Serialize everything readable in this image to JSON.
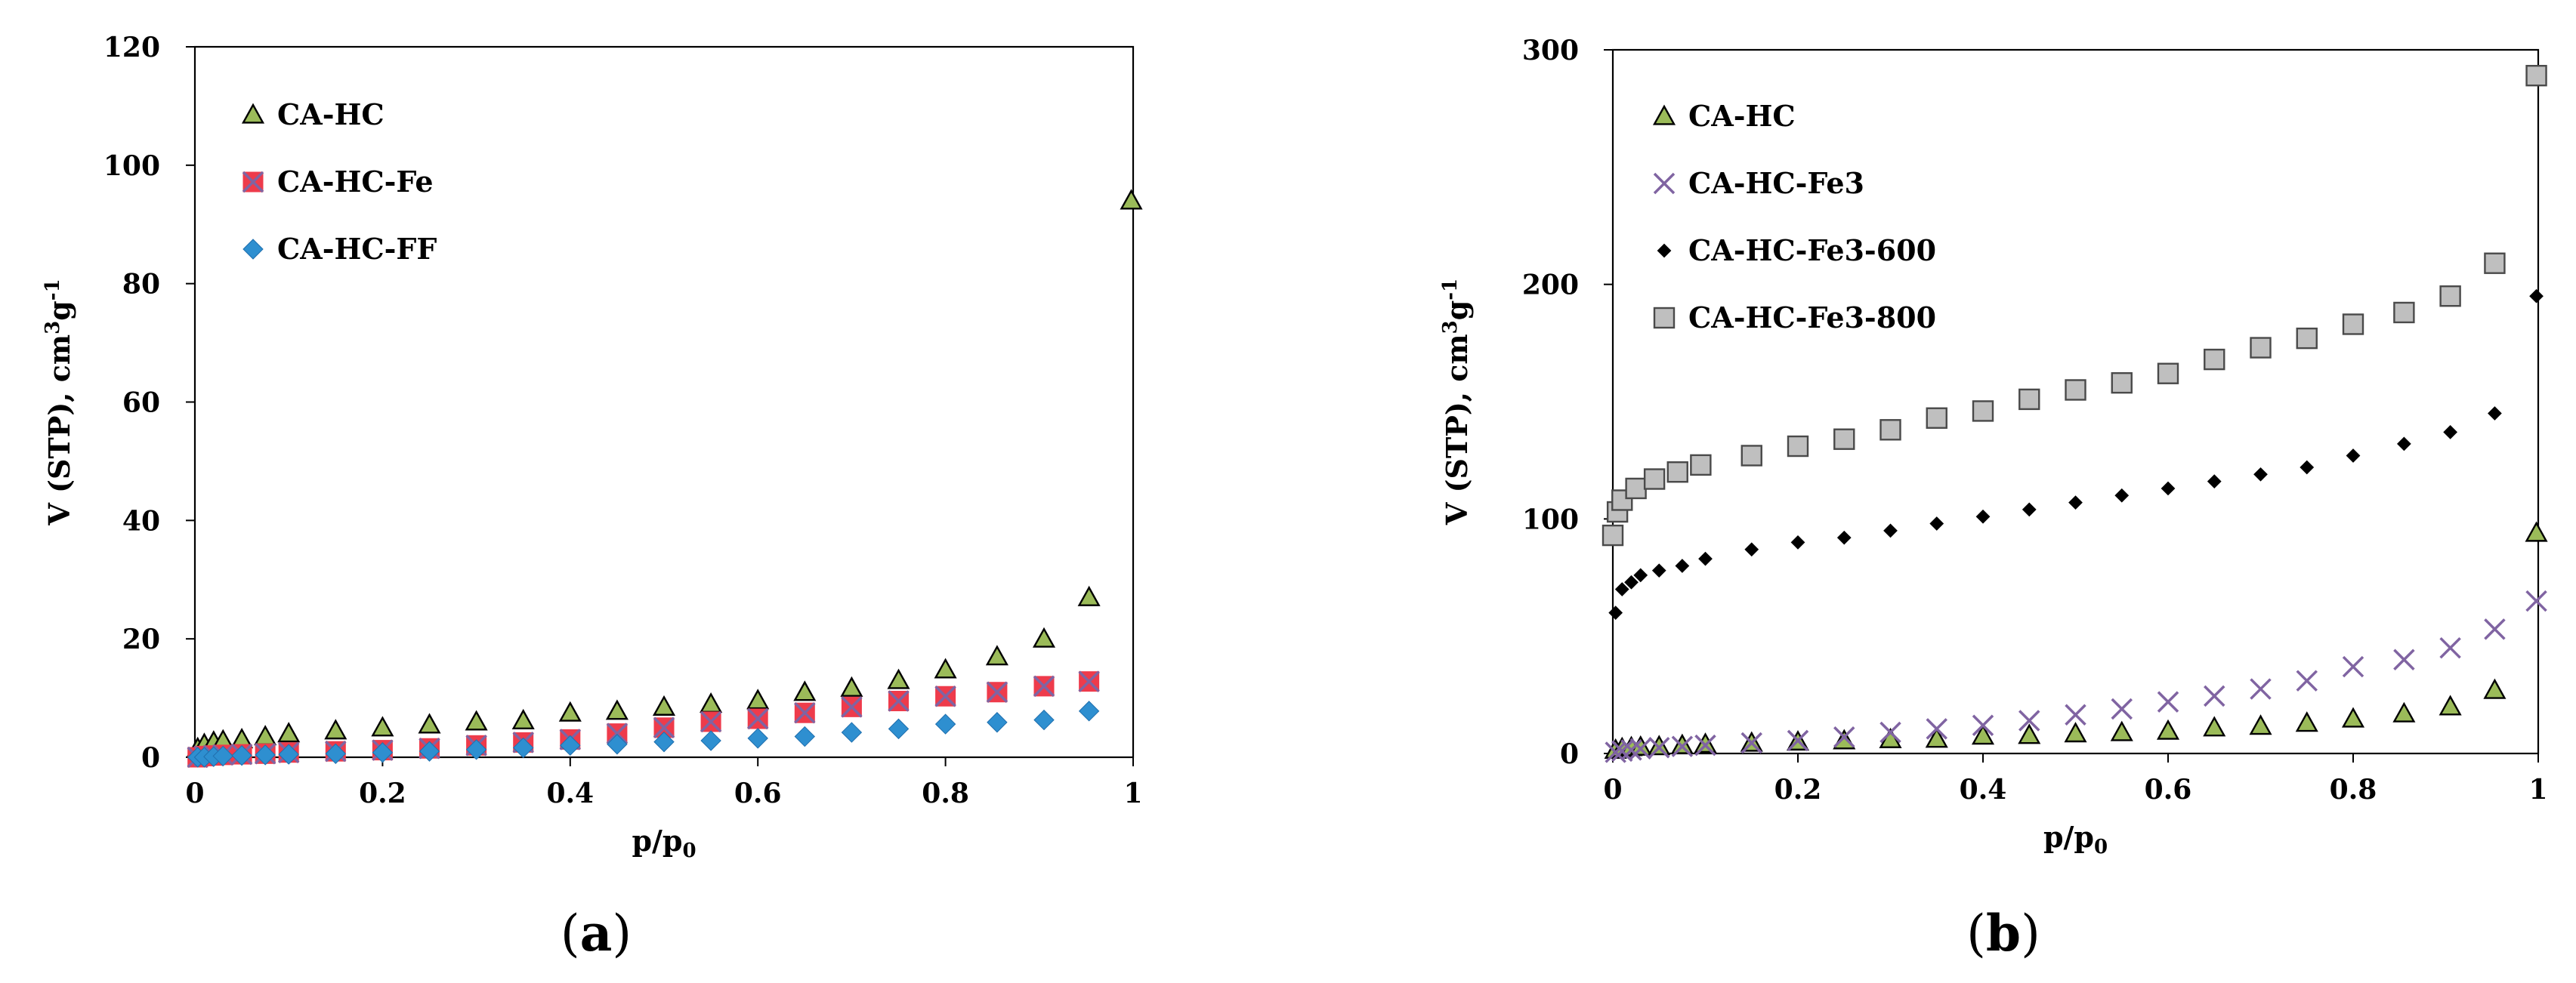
{
  "chart_data": [
    {
      "type": "scatter",
      "panel_label": "a",
      "xlabel": "p/p",
      "xlabel_sub": "0",
      "ylabel": "V (STP), cm",
      "ylabel_sup": "3",
      "ylabel_mid": "g",
      "ylabel_sup2": "-1",
      "xlim": [
        0,
        1
      ],
      "ylim": [
        0,
        120
      ],
      "xticks": [
        0,
        0.2,
        0.4,
        0.6,
        0.8,
        1
      ],
      "xtick_labels": [
        "0",
        "0.2",
        "0.4",
        "0.6",
        "0.8",
        "1"
      ],
      "yticks": [
        0,
        20,
        40,
        60,
        80,
        100,
        120
      ],
      "ytick_labels": [
        "0",
        "20",
        "40",
        "60",
        "80",
        "100",
        "120"
      ],
      "legend_position": "top-left",
      "series": [
        {
          "name": "CA-HC",
          "marker": "triangle",
          "color": "#9bbb59",
          "x": [
            0.003,
            0.01,
            0.02,
            0.03,
            0.05,
            0.075,
            0.1,
            0.15,
            0.2,
            0.25,
            0.3,
            0.35,
            0.4,
            0.45,
            0.5,
            0.55,
            0.6,
            0.65,
            0.7,
            0.75,
            0.8,
            0.855,
            0.905,
            0.953,
            0.998
          ],
          "y": [
            1.5,
            2.2,
            2.6,
            2.8,
            3.0,
            3.5,
            4.0,
            4.5,
            5.0,
            5.5,
            6.0,
            6.2,
            7.5,
            7.8,
            8.5,
            9.0,
            9.6,
            11.0,
            11.7,
            13.0,
            14.8,
            17.0,
            20.0,
            27.0,
            94.0
          ]
        },
        {
          "name": "CA-HC-Fe",
          "marker": "square-x",
          "color": "#ee3b4b",
          "x": [
            0.003,
            0.01,
            0.02,
            0.03,
            0.05,
            0.075,
            0.1,
            0.15,
            0.2,
            0.25,
            0.3,
            0.35,
            0.4,
            0.45,
            0.5,
            0.55,
            0.6,
            0.65,
            0.7,
            0.75,
            0.8,
            0.855,
            0.905,
            0.953
          ],
          "y": [
            0.0,
            0.2,
            0.3,
            0.4,
            0.5,
            0.6,
            0.8,
            1.0,
            1.2,
            1.5,
            2.0,
            2.5,
            3.0,
            4.0,
            5.0,
            6.0,
            6.5,
            7.5,
            8.5,
            9.5,
            10.3,
            11.0,
            12.0,
            12.8
          ]
        },
        {
          "name": "CA-HC-FF",
          "marker": "diamond",
          "color": "#2e8fd0",
          "x": [
            0.003,
            0.01,
            0.02,
            0.03,
            0.05,
            0.075,
            0.1,
            0.15,
            0.2,
            0.25,
            0.3,
            0.35,
            0.4,
            0.45,
            0.5,
            0.55,
            0.6,
            0.65,
            0.7,
            0.75,
            0.8,
            0.855,
            0.905,
            0.953
          ],
          "y": [
            0.0,
            0.0,
            0.1,
            0.2,
            0.3,
            0.4,
            0.5,
            0.6,
            0.8,
            1.0,
            1.3,
            1.6,
            2.0,
            2.2,
            2.6,
            2.8,
            3.2,
            3.5,
            4.2,
            4.8,
            5.6,
            5.9,
            6.3,
            7.8
          ]
        }
      ]
    },
    {
      "type": "scatter",
      "panel_label": "b",
      "xlabel": "p/p",
      "xlabel_sub": "0",
      "ylabel": "V (STP), cm",
      "ylabel_sup": "3",
      "ylabel_mid": "g",
      "ylabel_sup2": "-1",
      "xlim": [
        0,
        1
      ],
      "ylim": [
        0,
        300
      ],
      "xticks": [
        0,
        0.2,
        0.4,
        0.6,
        0.8,
        1
      ],
      "xtick_labels": [
        "0",
        "0.2",
        "0.4",
        "0.6",
        "0.8",
        "1"
      ],
      "yticks": [
        0,
        100,
        200,
        300
      ],
      "ytick_labels": [
        "0",
        "100",
        "200",
        "300"
      ],
      "legend_position": "top-left",
      "series": [
        {
          "name": "CA-HC",
          "marker": "triangle",
          "color": "#9bbb59",
          "x": [
            0.003,
            0.01,
            0.02,
            0.03,
            0.05,
            0.075,
            0.1,
            0.15,
            0.2,
            0.25,
            0.3,
            0.35,
            0.4,
            0.45,
            0.5,
            0.55,
            0.6,
            0.65,
            0.7,
            0.75,
            0.8,
            0.855,
            0.905,
            0.953,
            0.998
          ],
          "y": [
            1.5,
            2.2,
            2.6,
            2.8,
            3.0,
            3.5,
            4.0,
            4.5,
            5.0,
            5.5,
            6.0,
            6.2,
            7.5,
            7.8,
            8.5,
            9.0,
            9.6,
            11.0,
            11.7,
            13.0,
            14.8,
            17.0,
            20.0,
            27.0,
            94.0
          ]
        },
        {
          "name": "CA-HC-Fe3",
          "marker": "x",
          "color": "#8064a2",
          "x": [
            0.003,
            0.01,
            0.02,
            0.03,
            0.05,
            0.075,
            0.1,
            0.15,
            0.2,
            0.25,
            0.3,
            0.35,
            0.4,
            0.45,
            0.5,
            0.55,
            0.6,
            0.65,
            0.7,
            0.75,
            0.8,
            0.855,
            0.905,
            0.953,
            0.998
          ],
          "y": [
            0.5,
            1.0,
            1.5,
            2.0,
            2.5,
            3.0,
            3.5,
            4.5,
            5.5,
            7.0,
            9.0,
            10.5,
            12.0,
            14.0,
            16.5,
            19.0,
            22.0,
            24.5,
            27.5,
            31.0,
            37.0,
            40.0,
            45.0,
            53.0,
            65.0
          ]
        },
        {
          "name": "CA-HC-Fe3-600",
          "marker": "small-diamond",
          "color": "#000000",
          "x": [
            0.003,
            0.01,
            0.02,
            0.03,
            0.05,
            0.075,
            0.1,
            0.15,
            0.2,
            0.25,
            0.3,
            0.35,
            0.4,
            0.45,
            0.5,
            0.55,
            0.6,
            0.65,
            0.7,
            0.75,
            0.8,
            0.855,
            0.905,
            0.953,
            0.998
          ],
          "y": [
            60,
            70,
            73,
            76,
            78,
            80,
            83,
            87,
            90,
            92,
            95,
            98,
            101,
            104,
            107,
            110,
            113,
            116,
            119,
            122,
            127,
            132,
            137,
            145,
            195
          ]
        },
        {
          "name": "CA-HC-Fe3-800",
          "marker": "square",
          "color": "#bfbfbf",
          "x": [
            0.0,
            0.005,
            0.01,
            0.025,
            0.045,
            0.07,
            0.095,
            0.15,
            0.2,
            0.25,
            0.3,
            0.35,
            0.4,
            0.45,
            0.5,
            0.55,
            0.6,
            0.65,
            0.7,
            0.75,
            0.8,
            0.855,
            0.905,
            0.953,
            0.998
          ],
          "y": [
            93,
            103,
            108,
            113,
            117,
            120,
            123,
            127,
            131,
            134,
            138,
            143,
            146,
            151,
            155,
            158,
            162,
            168,
            173,
            177,
            183,
            188,
            195,
            209,
            289
          ]
        }
      ]
    }
  ]
}
